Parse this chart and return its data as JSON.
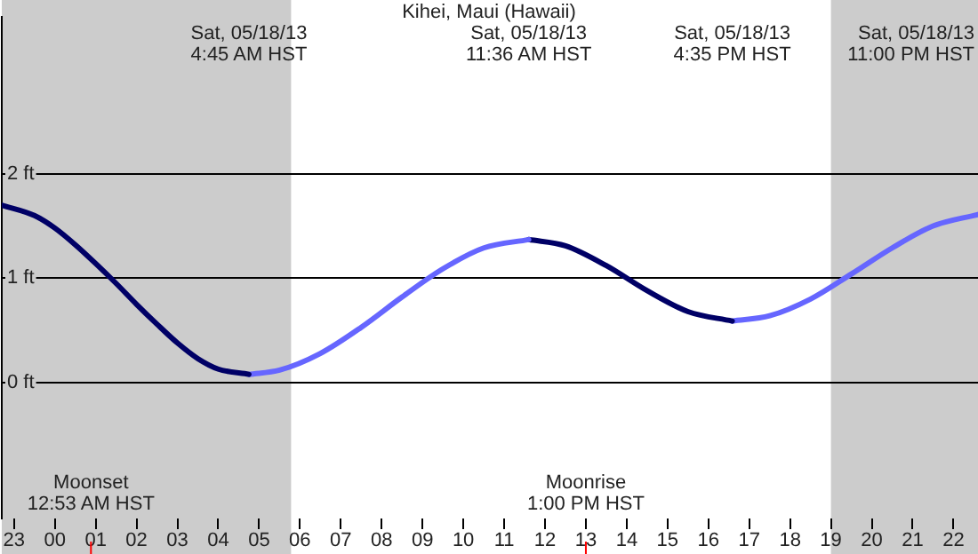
{
  "chart_data": {
    "type": "line",
    "title": "Kihei, Maui (Hawaii)",
    "xlim": [
      "--05-17T22:42",
      "--05-18T22:36"
    ],
    "xticks": [
      {
        "value": "--05-17T23:00",
        "label": "23"
      },
      {
        "value": "--05-18T00:00",
        "label": "00"
      },
      {
        "value": "--05-18T01:00",
        "label": "01"
      },
      {
        "value": "--05-18T02:00",
        "label": "02"
      },
      {
        "value": "--05-18T03:00",
        "label": "03"
      },
      {
        "value": "--05-18T04:00",
        "label": "04"
      },
      {
        "value": "--05-18T05:00",
        "label": "05"
      },
      {
        "value": "--05-18T06:00",
        "label": "06"
      },
      {
        "value": "--05-18T07:00",
        "label": "07"
      },
      {
        "value": "--05-18T08:00",
        "label": "08"
      },
      {
        "value": "--05-18T09:00",
        "label": "09"
      },
      {
        "value": "--05-18T10:00",
        "label": "10"
      },
      {
        "value": "--05-18T11:00",
        "label": "11"
      },
      {
        "value": "--05-18T12:00",
        "label": "12"
      },
      {
        "value": "--05-18T13:00",
        "label": "13"
      },
      {
        "value": "--05-18T14:00",
        "label": "14"
      },
      {
        "value": "--05-18T15:00",
        "label": "15"
      },
      {
        "value": "--05-18T16:00",
        "label": "16"
      },
      {
        "value": "--05-18T17:00",
        "label": "17"
      },
      {
        "value": "--05-18T18:00",
        "label": "18"
      },
      {
        "value": "--05-18T19:00",
        "label": "19"
      },
      {
        "value": "--05-18T20:00",
        "label": "20"
      },
      {
        "value": "--05-18T21:00",
        "label": "21"
      },
      {
        "value": "--05-18T22:00",
        "label": "22"
      }
    ],
    "ylim": [
      -1.3,
      3.5
    ],
    "yticks": [
      {
        "value": 0,
        "label": "0 ft"
      },
      {
        "value": 1,
        "label": "1 ft"
      },
      {
        "value": 2,
        "label": "2 ft"
      }
    ],
    "grid": "y",
    "legend": false,
    "marker": "none",
    "line_style": "solid",
    "series": [
      {
        "color": "#000066",
        "x": [
          "--05-17T22:42",
          "--05-17T23:30",
          "--05-18T00:00",
          "--05-18T00:30",
          "--05-18T01:00",
          "--05-18T01:30",
          "--05-18T02:00",
          "--05-18T02:30",
          "--05-18T03:00",
          "--05-18T03:30",
          "--05-18T04:00",
          "--05-18T04:45"
        ],
        "values": [
          1.7,
          1.6,
          1.48,
          1.32,
          1.14,
          0.95,
          0.75,
          0.56,
          0.38,
          0.23,
          0.13,
          0.08
        ]
      },
      {
        "color": "#6666ff",
        "x": [
          "--05-18T04:45",
          "--05-18T05:30",
          "--05-18T06:30",
          "--05-18T07:30",
          "--05-18T08:30",
          "--05-18T09:30",
          "--05-18T10:30",
          "--05-18T11:36"
        ],
        "values": [
          0.08,
          0.12,
          0.28,
          0.53,
          0.82,
          1.09,
          1.29,
          1.37
        ]
      },
      {
        "color": "#000066",
        "x": [
          "--05-18T11:36",
          "--05-18T12:30",
          "--05-18T13:30",
          "--05-18T14:30",
          "--05-18T15:30",
          "--05-18T16:35"
        ],
        "values": [
          1.37,
          1.31,
          1.12,
          0.88,
          0.68,
          0.59
        ]
      },
      {
        "color": "#6666ff",
        "x": [
          "--05-18T16:35",
          "--05-18T17:30",
          "--05-18T18:30",
          "--05-18T19:30",
          "--05-18T20:30",
          "--05-18T21:30",
          "--05-18T22:36"
        ],
        "values": [
          0.59,
          0.64,
          0.8,
          1.04,
          1.29,
          1.5,
          1.61
        ]
      }
    ],
    "bands": [
      {
        "axis": "x",
        "from": "--05-17T22:42",
        "to": "--05-18T05:47",
        "color": "#cccccc"
      },
      {
        "axis": "x",
        "from": "--05-18T19:00",
        "to": "--05-18T22:36",
        "color": "#cccccc"
      }
    ],
    "ref_lines": [
      {
        "axis": "x",
        "value": "--05-18T00:53",
        "label": "Moonset\n12:53 AM HST",
        "color": "#ff0000"
      },
      {
        "axis": "x",
        "value": "--05-18T13:00",
        "label": "Moonrise\n1:00 PM HST",
        "color": "#ff0000"
      }
    ],
    "annotations": [
      "Sat, 05/18/13\n4:45 AM HST",
      "Sat, 05/18/13\n11:36 AM HST",
      "Sat, 05/18/13\n4:35 PM HST",
      "Sat, 05/18/13\n11:00 PM HST"
    ]
  }
}
